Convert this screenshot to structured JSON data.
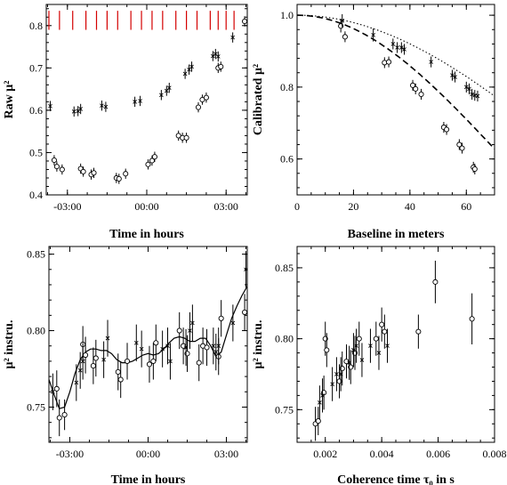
{
  "chart_data": [
    {
      "type": "scatter",
      "panel": "top-left",
      "xlabel": "Time in hours",
      "ylabel": "Raw μ²",
      "xlim": [
        -3.8,
        3.8
      ],
      "ylim": [
        0.4,
        0.85
      ],
      "xticks": [
        -3,
        0,
        3
      ],
      "xtick_labels": [
        "-03:00",
        "00:00",
        "03:00"
      ],
      "yticks": [
        0.4,
        0.5,
        0.6,
        0.7,
        0.8
      ],
      "ytick_labels": [
        "0.4",
        "0.5",
        "0.6",
        "0.7",
        "0.8"
      ],
      "marker_color": "#d40000",
      "calibrator_markers_x": [
        -3.7,
        -3.3,
        -2.8,
        -2.3,
        -1.9,
        -1.5,
        -1.1,
        -0.6,
        -0.2,
        0.2,
        0.6,
        1.1,
        1.5,
        1.9,
        2.4,
        2.7,
        3.0,
        3.3
      ],
      "series": [
        {
          "marker": "circle",
          "points": [
            {
              "x": -3.5,
              "y": 0.482,
              "err": 0.012
            },
            {
              "x": -3.4,
              "y": 0.467,
              "err": 0.012
            },
            {
              "x": -3.2,
              "y": 0.46,
              "err": 0.012
            },
            {
              "x": -2.5,
              "y": 0.462,
              "err": 0.012
            },
            {
              "x": -2.4,
              "y": 0.455,
              "err": 0.012
            },
            {
              "x": -2.1,
              "y": 0.448,
              "err": 0.012
            },
            {
              "x": -2.0,
              "y": 0.452,
              "err": 0.012
            },
            {
              "x": -1.15,
              "y": 0.44,
              "err": 0.012
            },
            {
              "x": -1.05,
              "y": 0.438,
              "err": 0.012
            },
            {
              "x": -0.8,
              "y": 0.45,
              "err": 0.012
            },
            {
              "x": 0.05,
              "y": 0.472,
              "err": 0.012
            },
            {
              "x": 0.2,
              "y": 0.481,
              "err": 0.012
            },
            {
              "x": 0.3,
              "y": 0.49,
              "err": 0.012
            },
            {
              "x": 1.2,
              "y": 0.54,
              "err": 0.012
            },
            {
              "x": 1.35,
              "y": 0.535,
              "err": 0.012
            },
            {
              "x": 1.5,
              "y": 0.535,
              "err": 0.012
            },
            {
              "x": 1.95,
              "y": 0.607,
              "err": 0.012
            },
            {
              "x": 2.1,
              "y": 0.625,
              "err": 0.012
            },
            {
              "x": 2.25,
              "y": 0.63,
              "err": 0.012
            },
            {
              "x": 2.7,
              "y": 0.7,
              "err": 0.012
            },
            {
              "x": 2.8,
              "y": 0.703,
              "err": 0.012
            },
            {
              "x": 3.7,
              "y": 0.81,
              "err": 0.012
            }
          ]
        },
        {
          "marker": "cross",
          "points": [
            {
              "x": -3.65,
              "y": 0.61,
              "err": 0.012
            },
            {
              "x": -2.75,
              "y": 0.597,
              "err": 0.012
            },
            {
              "x": -2.6,
              "y": 0.598,
              "err": 0.012
            },
            {
              "x": -2.5,
              "y": 0.603,
              "err": 0.012
            },
            {
              "x": -1.7,
              "y": 0.611,
              "err": 0.012
            },
            {
              "x": -1.55,
              "y": 0.608,
              "err": 0.012
            },
            {
              "x": -0.45,
              "y": 0.62,
              "err": 0.012
            },
            {
              "x": -0.25,
              "y": 0.622,
              "err": 0.012
            },
            {
              "x": 0.55,
              "y": 0.636,
              "err": 0.012
            },
            {
              "x": 0.75,
              "y": 0.646,
              "err": 0.012
            },
            {
              "x": 0.85,
              "y": 0.653,
              "err": 0.012
            },
            {
              "x": 1.45,
              "y": 0.686,
              "err": 0.012
            },
            {
              "x": 1.6,
              "y": 0.696,
              "err": 0.012
            },
            {
              "x": 1.7,
              "y": 0.703,
              "err": 0.012
            },
            {
              "x": 2.5,
              "y": 0.728,
              "err": 0.012
            },
            {
              "x": 2.6,
              "y": 0.733,
              "err": 0.012
            },
            {
              "x": 2.7,
              "y": 0.727,
              "err": 0.012
            },
            {
              "x": 3.25,
              "y": 0.772,
              "err": 0.012
            }
          ]
        }
      ]
    },
    {
      "type": "scatter",
      "panel": "top-right",
      "xlabel": "Baseline in meters",
      "ylabel": "Calibrated μ²",
      "xlim": [
        0,
        70
      ],
      "ylim": [
        0.5,
        1.03
      ],
      "xticks": [
        0,
        20,
        40,
        60
      ],
      "xtick_labels": [
        "0",
        "20",
        "40",
        "60"
      ],
      "yticks": [
        0.6,
        0.8,
        1.0
      ],
      "ytick_labels": [
        "0.6",
        "0.8",
        "1.0"
      ],
      "models": [
        {
          "style": "dotted",
          "k": 5.2e-05
        },
        {
          "style": "dashed",
          "k": 9.5e-05
        }
      ],
      "series": [
        {
          "marker": "circle",
          "points": [
            {
              "x": 15.5,
              "y": 0.97,
              "err": 0.018
            },
            {
              "x": 17.0,
              "y": 0.94,
              "err": 0.015
            },
            {
              "x": 31.0,
              "y": 0.868,
              "err": 0.015
            },
            {
              "x": 32.5,
              "y": 0.87,
              "err": 0.015
            },
            {
              "x": 41.0,
              "y": 0.805,
              "err": 0.015
            },
            {
              "x": 42.0,
              "y": 0.795,
              "err": 0.015
            },
            {
              "x": 44.0,
              "y": 0.78,
              "err": 0.015
            },
            {
              "x": 52.0,
              "y": 0.688,
              "err": 0.015
            },
            {
              "x": 53.0,
              "y": 0.682,
              "err": 0.015
            },
            {
              "x": 57.5,
              "y": 0.64,
              "err": 0.015
            },
            {
              "x": 58.5,
              "y": 0.63,
              "err": 0.015
            },
            {
              "x": 62.5,
              "y": 0.577,
              "err": 0.015
            },
            {
              "x": 63.0,
              "y": 0.572,
              "err": 0.015
            }
          ]
        },
        {
          "marker": "cross",
          "points": [
            {
              "x": 16.0,
              "y": 0.985,
              "err": 0.018
            },
            {
              "x": 27.0,
              "y": 0.945,
              "err": 0.018
            },
            {
              "x": 34.0,
              "y": 0.92,
              "err": 0.015
            },
            {
              "x": 35.5,
              "y": 0.91,
              "err": 0.015
            },
            {
              "x": 37.0,
              "y": 0.91,
              "err": 0.015
            },
            {
              "x": 38.0,
              "y": 0.905,
              "err": 0.015
            },
            {
              "x": 47.5,
              "y": 0.87,
              "err": 0.015
            },
            {
              "x": 55.0,
              "y": 0.833,
              "err": 0.015
            },
            {
              "x": 56.0,
              "y": 0.828,
              "err": 0.015
            },
            {
              "x": 60.0,
              "y": 0.8,
              "err": 0.015
            },
            {
              "x": 61.0,
              "y": 0.795,
              "err": 0.015
            },
            {
              "x": 62.0,
              "y": 0.78,
              "err": 0.015
            },
            {
              "x": 63.0,
              "y": 0.777,
              "err": 0.015
            },
            {
              "x": 64.0,
              "y": 0.775,
              "err": 0.015
            }
          ]
        }
      ]
    },
    {
      "type": "scatter",
      "panel": "bottom-left",
      "xlabel": "Time in hours",
      "ylabel": "μ² instru.",
      "xlim": [
        -3.8,
        3.8
      ],
      "ylim": [
        0.727,
        0.855
      ],
      "xticks": [
        -3,
        0,
        3
      ],
      "xtick_labels": [
        "-03:00",
        "00:00",
        "03:00"
      ],
      "yticks": [
        0.75,
        0.8,
        0.85
      ],
      "ytick_labels": [
        "0.75",
        "0.80",
        "0.85"
      ],
      "fit_curve": {
        "x": [
          -3.8,
          -3.6,
          -3.4,
          -3.2,
          -3.0,
          -2.8,
          -2.6,
          -2.4,
          -2.2,
          -2.0,
          -1.8,
          -1.6,
          -1.4,
          -1.2,
          -1.0,
          -0.8,
          -0.6,
          -0.4,
          -0.2,
          0.0,
          0.2,
          0.4,
          0.6,
          0.8,
          1.0,
          1.2,
          1.4,
          1.6,
          1.8,
          2.0,
          2.2,
          2.4,
          2.6,
          2.8,
          3.0,
          3.2,
          3.4,
          3.6,
          3.8
        ],
        "y": [
          0.768,
          0.758,
          0.749,
          0.75,
          0.76,
          0.772,
          0.781,
          0.786,
          0.788,
          0.788,
          0.787,
          0.787,
          0.785,
          0.781,
          0.779,
          0.779,
          0.78,
          0.782,
          0.784,
          0.785,
          0.784,
          0.785,
          0.788,
          0.792,
          0.795,
          0.796,
          0.795,
          0.793,
          0.793,
          0.795,
          0.795,
          0.79,
          0.783,
          0.786,
          0.797,
          0.808,
          0.816,
          0.823,
          0.829
        ]
      },
      "series": [
        {
          "marker": "circle",
          "points": [
            {
              "x": -3.5,
              "y": 0.762,
              "err": 0.012
            },
            {
              "x": -3.4,
              "y": 0.743,
              "err": 0.012
            },
            {
              "x": -3.2,
              "y": 0.745,
              "err": 0.01
            },
            {
              "x": -2.5,
              "y": 0.791,
              "err": 0.012
            },
            {
              "x": -2.4,
              "y": 0.784,
              "err": 0.012
            },
            {
              "x": -2.1,
              "y": 0.777,
              "err": 0.012
            },
            {
              "x": -2.0,
              "y": 0.782,
              "err": 0.012
            },
            {
              "x": -1.15,
              "y": 0.773,
              "err": 0.012
            },
            {
              "x": -1.05,
              "y": 0.768,
              "err": 0.012
            },
            {
              "x": -0.8,
              "y": 0.78,
              "err": 0.012
            },
            {
              "x": 0.05,
              "y": 0.778,
              "err": 0.012
            },
            {
              "x": 0.2,
              "y": 0.78,
              "err": 0.012
            },
            {
              "x": 0.3,
              "y": 0.792,
              "err": 0.012
            },
            {
              "x": 1.2,
              "y": 0.8,
              "err": 0.012
            },
            {
              "x": 1.35,
              "y": 0.79,
              "err": 0.012
            },
            {
              "x": 1.5,
              "y": 0.785,
              "err": 0.012
            },
            {
              "x": 1.95,
              "y": 0.779,
              "err": 0.012
            },
            {
              "x": 2.1,
              "y": 0.79,
              "err": 0.012
            },
            {
              "x": 2.25,
              "y": 0.789,
              "err": 0.012
            },
            {
              "x": 2.7,
              "y": 0.783,
              "err": 0.012
            },
            {
              "x": 2.8,
              "y": 0.808,
              "err": 0.012
            },
            {
              "x": 3.7,
              "y": 0.812,
              "err": 0.012
            }
          ]
        },
        {
          "marker": "cross",
          "points": [
            {
              "x": -3.65,
              "y": 0.76,
              "err": 0.012
            },
            {
              "x": -2.75,
              "y": 0.766,
              "err": 0.012
            },
            {
              "x": -2.6,
              "y": 0.774,
              "err": 0.012
            },
            {
              "x": -2.5,
              "y": 0.78,
              "err": 0.012
            },
            {
              "x": -1.7,
              "y": 0.781,
              "err": 0.012
            },
            {
              "x": -1.55,
              "y": 0.795,
              "err": 0.012
            },
            {
              "x": -0.45,
              "y": 0.792,
              "err": 0.012
            },
            {
              "x": -0.25,
              "y": 0.788,
              "err": 0.012
            },
            {
              "x": 0.55,
              "y": 0.788,
              "err": 0.012
            },
            {
              "x": 0.75,
              "y": 0.79,
              "err": 0.012
            },
            {
              "x": 0.85,
              "y": 0.78,
              "err": 0.012
            },
            {
              "x": 1.45,
              "y": 0.789,
              "err": 0.012
            },
            {
              "x": 1.6,
              "y": 0.8,
              "err": 0.012
            },
            {
              "x": 1.7,
              "y": 0.805,
              "err": 0.012
            },
            {
              "x": 2.5,
              "y": 0.79,
              "err": 0.012
            },
            {
              "x": 2.6,
              "y": 0.786,
              "err": 0.012
            },
            {
              "x": 2.7,
              "y": 0.79,
              "err": 0.012
            },
            {
              "x": 3.25,
              "y": 0.805,
              "err": 0.012
            },
            {
              "x": 3.75,
              "y": 0.84,
              "err": 0.012
            }
          ]
        }
      ]
    },
    {
      "type": "scatter",
      "panel": "bottom-right",
      "xlabel": "Coherence time τ₀ in s",
      "ylabel": "μ² instru.",
      "xlim": [
        0.001,
        0.008
      ],
      "ylim": [
        0.727,
        0.865
      ],
      "xticks": [
        0.002,
        0.004,
        0.006,
        0.008
      ],
      "xtick_labels": [
        "0.002",
        "0.004",
        "0.006",
        "0.008"
      ],
      "yticks": [
        0.75,
        0.8,
        0.85
      ],
      "ytick_labels": [
        "0.75",
        "0.80",
        "0.85"
      ],
      "series": [
        {
          "marker": "circle",
          "points": [
            {
              "x": 0.00165,
              "y": 0.74,
              "err": 0.012
            },
            {
              "x": 0.00175,
              "y": 0.742,
              "err": 0.01
            },
            {
              "x": 0.00195,
              "y": 0.762,
              "err": 0.012
            },
            {
              "x": 0.002,
              "y": 0.8,
              "err": 0.012
            },
            {
              "x": 0.00205,
              "y": 0.792,
              "err": 0.012
            },
            {
              "x": 0.0025,
              "y": 0.77,
              "err": 0.012
            },
            {
              "x": 0.0026,
              "y": 0.779,
              "err": 0.012
            },
            {
              "x": 0.00275,
              "y": 0.784,
              "err": 0.012
            },
            {
              "x": 0.0029,
              "y": 0.78,
              "err": 0.012
            },
            {
              "x": 0.00305,
              "y": 0.79,
              "err": 0.012
            },
            {
              "x": 0.0032,
              "y": 0.8,
              "err": 0.012
            },
            {
              "x": 0.0038,
              "y": 0.8,
              "err": 0.012
            },
            {
              "x": 0.004,
              "y": 0.81,
              "err": 0.012
            },
            {
              "x": 0.0041,
              "y": 0.805,
              "err": 0.012
            },
            {
              "x": 0.0053,
              "y": 0.805,
              "err": 0.012
            },
            {
              "x": 0.0059,
              "y": 0.84,
              "err": 0.015
            },
            {
              "x": 0.0072,
              "y": 0.814,
              "err": 0.018
            }
          ]
        },
        {
          "marker": "cross",
          "points": [
            {
              "x": 0.0018,
              "y": 0.755,
              "err": 0.012
            },
            {
              "x": 0.0019,
              "y": 0.76,
              "err": 0.012
            },
            {
              "x": 0.00225,
              "y": 0.768,
              "err": 0.012
            },
            {
              "x": 0.0024,
              "y": 0.775,
              "err": 0.012
            },
            {
              "x": 0.00255,
              "y": 0.775,
              "err": 0.012
            },
            {
              "x": 0.00285,
              "y": 0.783,
              "err": 0.012
            },
            {
              "x": 0.003,
              "y": 0.792,
              "err": 0.012
            },
            {
              "x": 0.0031,
              "y": 0.795,
              "err": 0.012
            },
            {
              "x": 0.0033,
              "y": 0.785,
              "err": 0.012
            },
            {
              "x": 0.0036,
              "y": 0.795,
              "err": 0.012
            },
            {
              "x": 0.0039,
              "y": 0.79,
              "err": 0.012
            },
            {
              "x": 0.0042,
              "y": 0.795,
              "err": 0.012
            }
          ]
        }
      ]
    }
  ]
}
